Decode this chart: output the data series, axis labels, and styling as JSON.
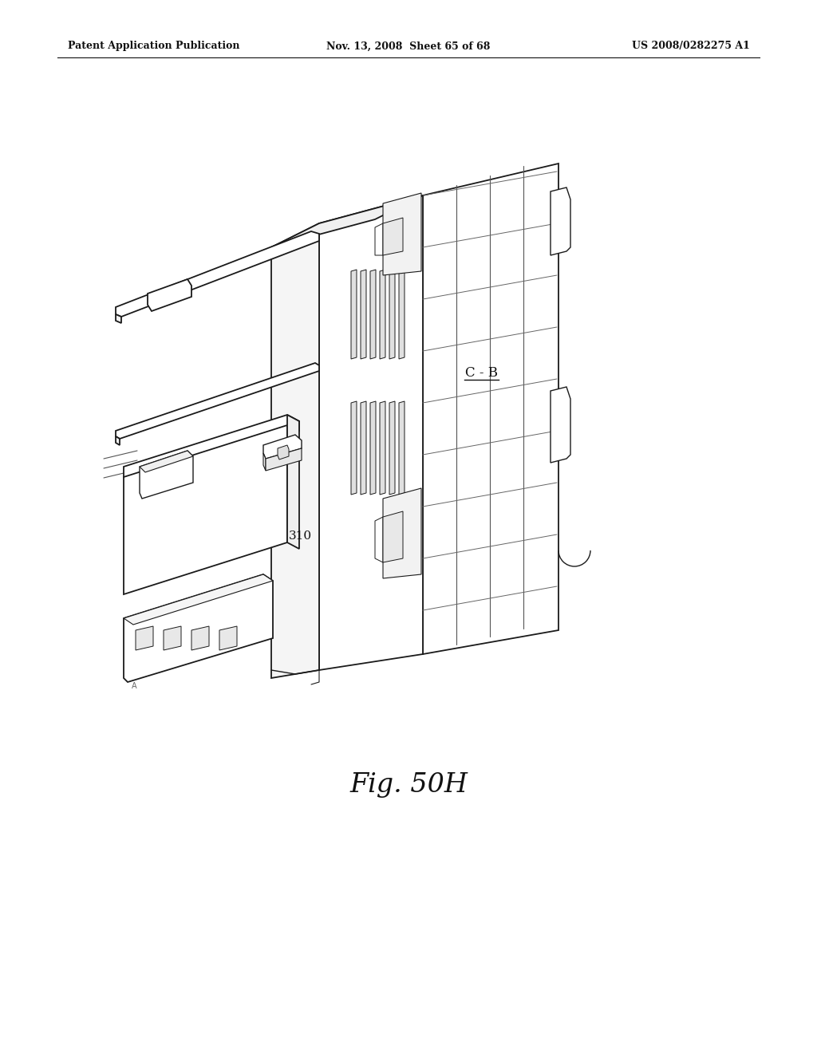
{
  "background_color": "#ffffff",
  "header_left": "Patent Application Publication",
  "header_center": "Nov. 13, 2008  Sheet 65 of 68",
  "header_right": "US 2008/0282275 A1",
  "figure_label": "Fig. 50H",
  "label_310": "310",
  "label_CB": "C - B",
  "line_color": "#1a1a1a",
  "line_width": 1.3
}
